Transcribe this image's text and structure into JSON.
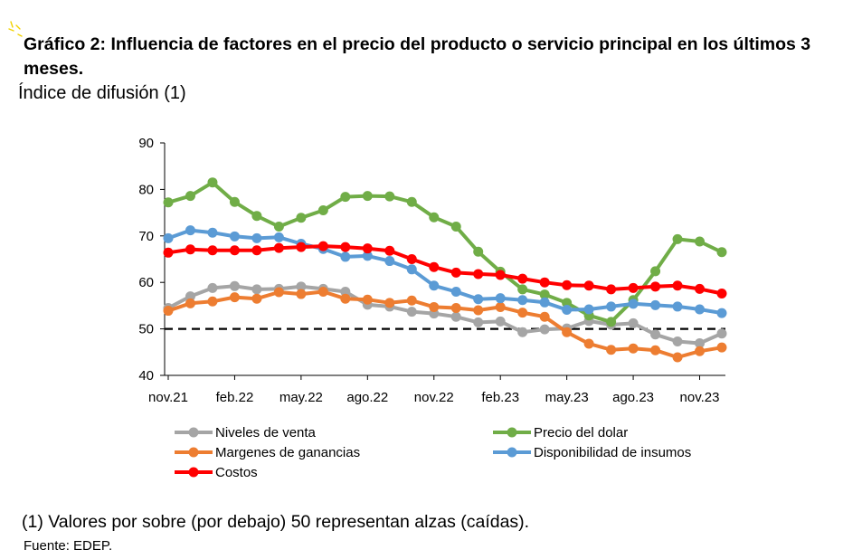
{
  "header": {
    "title": "Gráfico 2: Influencia de factores en el precio del producto o servicio principal en los últimos 3 meses.",
    "subtitle": "Índice de difusión (1)"
  },
  "footer": {
    "note": "(1) Valores por sobre (por debajo) 50 representan alzas (caídas).",
    "source": "Fuente: EDEP."
  },
  "chart_data": {
    "type": "line",
    "title": "Gráfico 2: Influencia de factores en el precio del producto o servicio principal en los últimos 3 meses.",
    "ylabel": "Índice de difusión (1)",
    "xlabel": "",
    "ylim": [
      40,
      90
    ],
    "yticks": [
      40,
      50,
      60,
      70,
      80,
      90
    ],
    "xtick_labels": [
      {
        "index": 0,
        "label": "nov.21"
      },
      {
        "index": 3,
        "label": "feb.22"
      },
      {
        "index": 6,
        "label": "may.22"
      },
      {
        "index": 9,
        "label": "ago.22"
      },
      {
        "index": 12,
        "label": "nov.22"
      },
      {
        "index": 15,
        "label": "feb.23"
      },
      {
        "index": 18,
        "label": "may.23"
      },
      {
        "index": 21,
        "label": "ago.23"
      },
      {
        "index": 24,
        "label": "nov.23"
      }
    ],
    "reference_line": 50,
    "series": [
      {
        "name": "Niveles de venta",
        "color": "#a5a5a5",
        "values": [
          54.5,
          57.0,
          58.8,
          59.2,
          58.5,
          58.6,
          59.1,
          58.6,
          58.0,
          55.2,
          54.8,
          53.7,
          53.3,
          52.6,
          51.4,
          51.6,
          49.3,
          49.9,
          50.1,
          51.7,
          50.9,
          51.2,
          48.8,
          47.3,
          46.9,
          49.0
        ]
      },
      {
        "name": "Precio del dolar",
        "color": "#70ad47",
        "values": [
          77.2,
          78.6,
          81.5,
          77.3,
          74.3,
          72.0,
          73.9,
          75.5,
          78.4,
          78.6,
          78.5,
          77.3,
          74.0,
          72.0,
          66.6,
          62.3,
          58.5,
          57.4,
          55.6,
          52.9,
          51.5,
          56.2,
          62.4,
          69.3,
          68.8,
          66.5
        ]
      },
      {
        "name": "Margenes de ganancias",
        "color": "#ed7d31",
        "values": [
          53.9,
          55.5,
          55.9,
          56.8,
          56.5,
          57.9,
          57.5,
          58.0,
          56.5,
          56.3,
          55.6,
          56.1,
          54.7,
          54.5,
          54.0,
          54.7,
          53.5,
          52.6,
          49.3,
          46.8,
          45.5,
          45.8,
          45.4,
          43.9,
          45.2,
          46.0
        ]
      },
      {
        "name": "Disponibilidad de insumos",
        "color": "#5b9bd5",
        "values": [
          69.5,
          71.2,
          70.7,
          69.9,
          69.5,
          69.7,
          68.3,
          67.2,
          65.5,
          65.7,
          64.6,
          62.8,
          59.3,
          58.0,
          56.4,
          56.6,
          56.2,
          55.7,
          54.1,
          54.2,
          54.8,
          55.4,
          55.1,
          54.8,
          54.2,
          53.4
        ]
      },
      {
        "name": "Costos",
        "color": "#ff0000",
        "values": [
          66.4,
          67.1,
          66.9,
          66.9,
          66.9,
          67.4,
          67.6,
          67.8,
          67.6,
          67.3,
          66.8,
          65.0,
          63.3,
          62.1,
          61.8,
          61.6,
          60.8,
          60.0,
          59.4,
          59.3,
          58.5,
          58.8,
          59.1,
          59.3,
          58.6,
          57.6
        ]
      }
    ],
    "legend": {
      "placement": "bottom",
      "order": [
        "Niveles de venta",
        "Precio del dolar",
        "Margenes de ganancias",
        "Disponibilidad de insumos",
        "Costos"
      ]
    }
  }
}
